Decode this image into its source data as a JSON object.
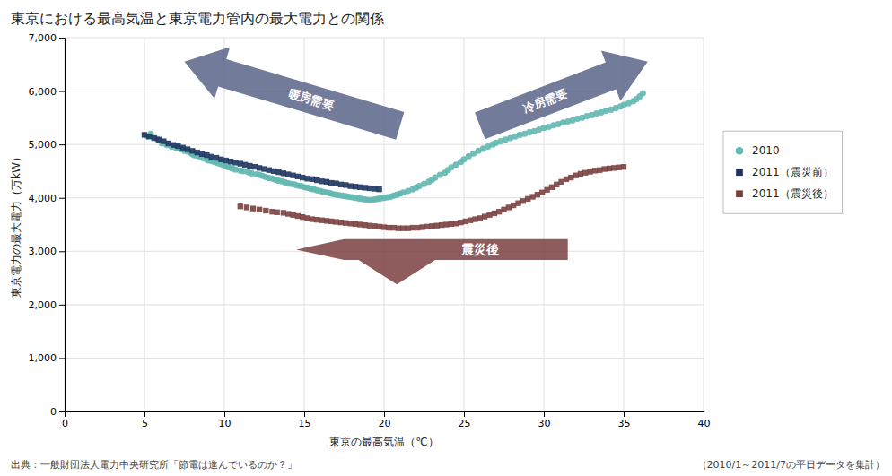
{
  "chart_data": {
    "type": "scatter",
    "title": "東京における最高気温と東京電力管内の最大電力との関係",
    "x_label": "東京の最高気温（℃）",
    "y_label": "東京電力の最大電力（万kW）",
    "annotations": [
      "暖房需要",
      "冷房需要",
      "震災後",
      "出典：一般財団法人電力中央研究所「節電は進んでいるのか？」",
      "（2010/1～2011/7の平日データを集計）"
    ],
    "xlim": [
      0,
      40
    ],
    "ylim": [
      0,
      7000
    ],
    "xticks": [
      0,
      5,
      10,
      15,
      20,
      25,
      30,
      35,
      40
    ],
    "yticks": [
      0,
      {
        "value": 1000,
        "label": "1,000"
      },
      {
        "value": 2000,
        "label": "2,000"
      },
      {
        "value": 3000,
        "label": "3,000"
      },
      {
        "value": 4000,
        "label": "4,000"
      },
      {
        "value": 5000,
        "label": "5,000"
      },
      {
        "value": 6000,
        "label": "6,000"
      },
      {
        "value": 7000,
        "label": "7,000"
      }
    ],
    "grid": true,
    "legend": "right",
    "series": [
      {
        "name": "2010",
        "color": "#62b8b0",
        "marker": "circle",
        "x": [
          5.2,
          5.4,
          5.8,
          6.1,
          6.4,
          6.7,
          7.0,
          7.1,
          7.3,
          7.5,
          7.7,
          7.9,
          8.0,
          8.1,
          8.3,
          8.5,
          8.7,
          8.9,
          9.0,
          9.2,
          9.4,
          9.6,
          9.8,
          10.0,
          10.2,
          10.3,
          10.5,
          10.7,
          11.0,
          11.2,
          11.5,
          11.7,
          12.0,
          12.2,
          12.4,
          12.6,
          12.8,
          13.0,
          13.2,
          13.4,
          13.6,
          13.8,
          14.0,
          14.2,
          14.4,
          14.6,
          14.8,
          15.0,
          15.2,
          15.4,
          15.6,
          15.8,
          16.0,
          16.2,
          16.4,
          16.6,
          16.8,
          17.0,
          17.2,
          17.4,
          17.6,
          17.8,
          18.0,
          18.2,
          18.4,
          18.6,
          18.8,
          19.0,
          19.2,
          19.4,
          19.6,
          19.8,
          20.0,
          20.2,
          20.4,
          20.6,
          20.8,
          21.0,
          21.2,
          21.5,
          21.8,
          22.0,
          22.2,
          22.5,
          22.8,
          23.0,
          23.2,
          23.5,
          23.8,
          24.0,
          24.2,
          24.5,
          24.8,
          25.0,
          25.3,
          25.6,
          25.9,
          26.2,
          26.5,
          26.8,
          27.0,
          27.3,
          27.6,
          27.9,
          28.2,
          28.5,
          28.8,
          29.1,
          29.4,
          29.7,
          30.0,
          30.3,
          30.6,
          30.9,
          31.2,
          31.5,
          31.8,
          32.1,
          32.4,
          32.7,
          33.0,
          33.3,
          33.6,
          33.9,
          34.2,
          34.5,
          34.8,
          35.0,
          35.3,
          35.6,
          35.8,
          36.0,
          36.2
        ],
        "values": [
          5150,
          5200,
          5100,
          5020,
          4990,
          4960,
          4930,
          4940,
          4910,
          4880,
          4870,
          4840,
          4820,
          4800,
          4790,
          4760,
          4740,
          4720,
          4700,
          4690,
          4670,
          4650,
          4630,
          4610,
          4590,
          4570,
          4550,
          4530,
          4510,
          4500,
          4480,
          4460,
          4440,
          4430,
          4410,
          4390,
          4370,
          4360,
          4340,
          4320,
          4310,
          4290,
          4270,
          4260,
          4250,
          4230,
          4220,
          4200,
          4190,
          4170,
          4160,
          4140,
          4130,
          4110,
          4100,
          4090,
          4070,
          4060,
          4050,
          4040,
          4030,
          4020,
          4010,
          4000,
          3990,
          3980,
          3970,
          3960,
          3960,
          3970,
          3980,
          3990,
          4000,
          4010,
          4020,
          4040,
          4060,
          4080,
          4100,
          4130,
          4160,
          4190,
          4220,
          4260,
          4300,
          4340,
          4380,
          4430,
          4470,
          4520,
          4570,
          4620,
          4670,
          4720,
          4780,
          4830,
          4880,
          4920,
          4960,
          5000,
          5030,
          5060,
          5090,
          5120,
          5150,
          5180,
          5200,
          5230,
          5250,
          5280,
          5310,
          5330,
          5360,
          5380,
          5410,
          5430,
          5450,
          5480,
          5500,
          5530,
          5550,
          5580,
          5600,
          5630,
          5650,
          5680,
          5710,
          5740,
          5770,
          5810,
          5850,
          5900,
          5960
        ]
      },
      {
        "name": "2011（震災前）",
        "color": "#1e3560",
        "marker": "square",
        "x": [
          5.0,
          5.3,
          5.6,
          5.9,
          6.2,
          6.5,
          6.8,
          7.1,
          7.4,
          7.7,
          8.0,
          8.3,
          8.6,
          8.9,
          9.2,
          9.5,
          9.8,
          10.1,
          10.4,
          10.7,
          11.0,
          11.3,
          11.6,
          11.9,
          12.2,
          12.5,
          12.8,
          13.1,
          13.4,
          13.7,
          14.0,
          14.3,
          14.6,
          14.9,
          15.2,
          15.5,
          15.8,
          16.1,
          16.4,
          16.7,
          17.0,
          17.3,
          17.6,
          17.9,
          18.2,
          18.5,
          18.8,
          19.1,
          19.4,
          19.7
        ],
        "values": [
          5180,
          5150,
          5120,
          5090,
          5060,
          5020,
          4990,
          4970,
          4940,
          4910,
          4880,
          4850,
          4820,
          4800,
          4770,
          4750,
          4720,
          4700,
          4680,
          4660,
          4640,
          4620,
          4600,
          4580,
          4560,
          4540,
          4520,
          4500,
          4480,
          4460,
          4440,
          4420,
          4400,
          4380,
          4360,
          4350,
          4330,
          4310,
          4300,
          4280,
          4270,
          4250,
          4240,
          4220,
          4210,
          4200,
          4190,
          4180,
          4170,
          4160
        ]
      },
      {
        "name": "2011（震災後）",
        "color": "#7a4040",
        "marker": "square",
        "x": [
          11.0,
          11.4,
          11.8,
          12.2,
          12.6,
          13.0,
          13.3,
          13.7,
          14.0,
          14.3,
          14.6,
          14.9,
          15.2,
          15.5,
          15.8,
          16.1,
          16.4,
          16.7,
          17.0,
          17.3,
          17.6,
          17.9,
          18.2,
          18.5,
          18.8,
          19.1,
          19.4,
          19.7,
          20.0,
          20.3,
          20.6,
          20.9,
          21.2,
          21.5,
          21.8,
          22.1,
          22.4,
          22.7,
          23.0,
          23.3,
          23.6,
          23.9,
          24.2,
          24.5,
          24.8,
          25.1,
          25.4,
          25.7,
          26.0,
          26.3,
          26.6,
          26.9,
          27.2,
          27.5,
          27.8,
          28.1,
          28.4,
          28.7,
          29.0,
          29.3,
          29.6,
          29.9,
          30.2,
          30.5,
          30.8,
          31.1,
          31.4,
          31.7,
          32.0,
          32.3,
          32.6,
          32.9,
          33.2,
          33.5,
          33.8,
          34.1,
          34.4,
          34.7,
          35.0
        ],
        "values": [
          3840,
          3820,
          3800,
          3780,
          3760,
          3740,
          3730,
          3720,
          3700,
          3680,
          3660,
          3640,
          3620,
          3600,
          3590,
          3580,
          3570,
          3560,
          3550,
          3540,
          3530,
          3520,
          3510,
          3500,
          3490,
          3480,
          3470,
          3460,
          3450,
          3440,
          3440,
          3430,
          3430,
          3430,
          3440,
          3440,
          3450,
          3460,
          3470,
          3480,
          3490,
          3500,
          3510,
          3520,
          3540,
          3560,
          3580,
          3600,
          3620,
          3650,
          3680,
          3710,
          3740,
          3780,
          3820,
          3860,
          3900,
          3940,
          3980,
          4020,
          4060,
          4100,
          4150,
          4200,
          4250,
          4300,
          4350,
          4380,
          4420,
          4450,
          4470,
          4490,
          4510,
          4520,
          4540,
          4550,
          4560,
          4570,
          4580
        ]
      }
    ]
  }
}
